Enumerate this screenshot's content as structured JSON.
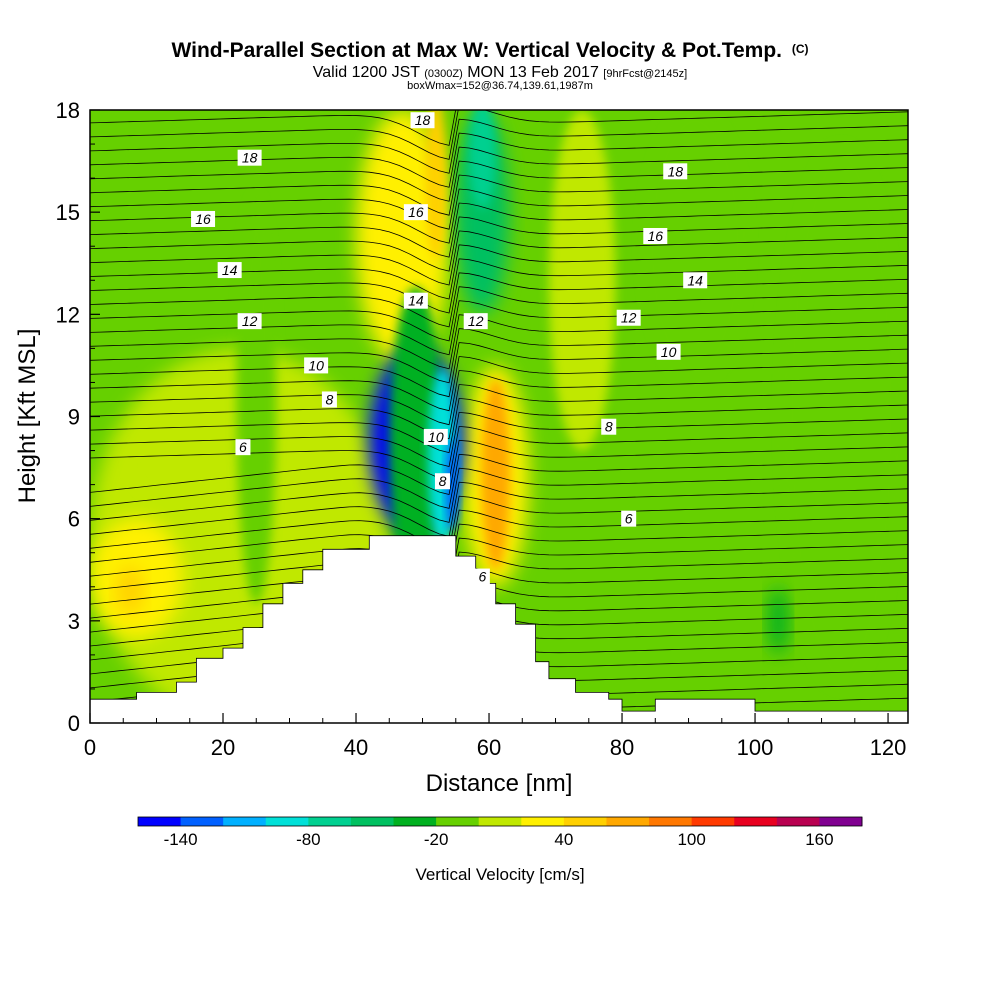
{
  "title": {
    "main": "Wind-Parallel Section at Max W: Vertical Velocity & Pot.Temp.",
    "main_tag": "(C)",
    "valid_prefix": "Valid 1200 JST",
    "valid_utc": "(0300Z)",
    "valid_date": "MON 13 Feb 2017",
    "forecast": "[9hrFcst@2145z]",
    "box": "boxWmax=152@36.74,139.61,1987m"
  },
  "chart_data": {
    "type": "heatmap",
    "xlabel": "Distance [nm]",
    "ylabel": "Height [Kft MSL]",
    "xlim": [
      0,
      123
    ],
    "ylim": [
      0,
      18
    ],
    "x_ticks": [
      0,
      20,
      40,
      60,
      80,
      100,
      120
    ],
    "y_ticks": [
      0,
      3,
      6,
      9,
      12,
      15,
      18
    ],
    "colorbar": {
      "label": "Vertical Velocity [cm/s]",
      "tick_values": [
        -140,
        -80,
        -20,
        40,
        100,
        160
      ],
      "levels": [
        -160,
        -140,
        -120,
        -100,
        -80,
        -60,
        -40,
        -20,
        0,
        20,
        40,
        60,
        80,
        100,
        120,
        140,
        160,
        180
      ],
      "colors": [
        "#0000ff",
        "#0060ff",
        "#00b0ff",
        "#00e0d8",
        "#00d090",
        "#00c060",
        "#00b020",
        "#66d000",
        "#c0e800",
        "#fff000",
        "#ffd000",
        "#ffa800",
        "#ff7800",
        "#ff3a00",
        "#e80020",
        "#b80050",
        "#800090"
      ]
    },
    "fields": {
      "vertical_velocity_regions": [
        {
          "band": "-20 to 0",
          "x": [
            0,
            123
          ],
          "y": [
            0,
            18
          ]
        },
        {
          "band": "0 to 20",
          "x": [
            0,
            45
          ],
          "y": [
            0,
            11
          ]
        },
        {
          "band": "20 to 40",
          "x": [
            0,
            14
          ],
          "y": [
            2.5,
            6
          ]
        },
        {
          "band": "40 to 60",
          "x": [
            4,
            8
          ],
          "y": [
            3.2,
            4.6
          ]
        },
        {
          "band": "20 to 60",
          "x": [
            40,
            54
          ],
          "y": [
            10.5,
            18
          ]
        },
        {
          "band": "20 to 80",
          "x": [
            56,
            66
          ],
          "y": [
            4,
            10.5
          ]
        },
        {
          "band": "-160 to -40",
          "x": [
            42,
            56
          ],
          "y": [
            5.5,
            11
          ]
        },
        {
          "band": "-60 to -40",
          "x": [
            55,
            63
          ],
          "y": [
            12,
            18
          ]
        },
        {
          "band": "-40 to -20",
          "x": [
            102,
            105
          ],
          "y": [
            2,
            4
          ]
        }
      ],
      "terrain_profile": [
        [
          0,
          0.7
        ],
        [
          7,
          0.7
        ],
        [
          7,
          0.9
        ],
        [
          13,
          0.9
        ],
        [
          13,
          1.2
        ],
        [
          16,
          1.2
        ],
        [
          16,
          1.9
        ],
        [
          20,
          1.9
        ],
        [
          20,
          2.2
        ],
        [
          23,
          2.2
        ],
        [
          23,
          2.8
        ],
        [
          26,
          2.8
        ],
        [
          26,
          3.5
        ],
        [
          29,
          3.5
        ],
        [
          29,
          4.1
        ],
        [
          32,
          4.1
        ],
        [
          32,
          4.5
        ],
        [
          35,
          4.5
        ],
        [
          35,
          5.1
        ],
        [
          42,
          5.1
        ],
        [
          42,
          5.5
        ],
        [
          55,
          5.5
        ],
        [
          55,
          4.9
        ],
        [
          58,
          4.9
        ],
        [
          58,
          4.1
        ],
        [
          61,
          4.1
        ],
        [
          61,
          3.5
        ],
        [
          64,
          3.5
        ],
        [
          64,
          2.9
        ],
        [
          67,
          2.9
        ],
        [
          67,
          1.8
        ],
        [
          69,
          1.8
        ],
        [
          69,
          1.3
        ],
        [
          73,
          1.3
        ],
        [
          73,
          0.9
        ],
        [
          78,
          0.9
        ],
        [
          78,
          0.7
        ],
        [
          80,
          0.7
        ],
        [
          80,
          0.35
        ],
        [
          85,
          0.35
        ],
        [
          85,
          0.7
        ],
        [
          100,
          0.7
        ],
        [
          100,
          0.35
        ],
        [
          123,
          0.35
        ]
      ],
      "pot_temp_labels": [
        {
          "text": "18",
          "x": 24,
          "y": 16.6
        },
        {
          "text": "16",
          "x": 17,
          "y": 14.8
        },
        {
          "text": "14",
          "x": 21,
          "y": 13.3
        },
        {
          "text": "12",
          "x": 24,
          "y": 11.8
        },
        {
          "text": "10",
          "x": 34,
          "y": 10.5
        },
        {
          "text": "8",
          "x": 36,
          "y": 9.5
        },
        {
          "text": "6",
          "x": 23,
          "y": 8.1
        },
        {
          "text": "18",
          "x": 50,
          "y": 17.7
        },
        {
          "text": "16",
          "x": 49,
          "y": 15.0
        },
        {
          "text": "14",
          "x": 49,
          "y": 12.4
        },
        {
          "text": "12",
          "x": 58,
          "y": 11.8
        },
        {
          "text": "10",
          "x": 52,
          "y": 8.4
        },
        {
          "text": "8",
          "x": 53,
          "y": 7.1
        },
        {
          "text": "6",
          "x": 59,
          "y": 4.3
        },
        {
          "text": "18",
          "x": 88,
          "y": 16.2
        },
        {
          "text": "16",
          "x": 85,
          "y": 14.3
        },
        {
          "text": "14",
          "x": 91,
          "y": 13.0
        },
        {
          "text": "12",
          "x": 81,
          "y": 11.9
        },
        {
          "text": "10",
          "x": 87,
          "y": 10.9
        },
        {
          "text": "8",
          "x": 78,
          "y": 8.7
        },
        {
          "text": "6",
          "x": 81,
          "y": 6.0
        }
      ]
    }
  }
}
